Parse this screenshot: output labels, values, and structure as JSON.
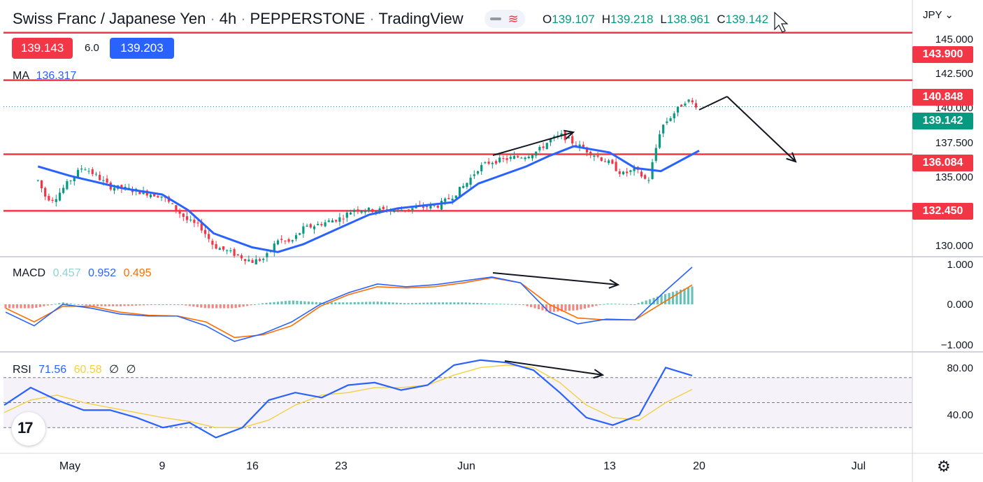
{
  "header": {
    "symbol": "Swiss Franc / Japanese Yen",
    "interval": "4h",
    "broker": "PEPPERSTONE",
    "platform": "TradingView",
    "dot": "·",
    "ohlc": {
      "o_key": "O",
      "o": "139.107",
      "h_key": "H",
      "h": "139.218",
      "l_key": "L",
      "l": "138.961",
      "c_key": "C",
      "c": "139.142"
    },
    "bid": "139.143",
    "spread": "6.0",
    "ask": "139.203",
    "currency": "JPY",
    "currency_caret": "⌄"
  },
  "indicators": {
    "ma": {
      "name": "MA",
      "value": "136.317"
    },
    "macd": {
      "name": "MACD",
      "hist": "0.457",
      "macd": "0.952",
      "signal": "0.495"
    },
    "rsi": {
      "name": "RSI",
      "value": "71.56",
      "ma": "60.58",
      "extra1": "∅",
      "extra2": "∅"
    }
  },
  "price_axis": [
    "145.000",
    "142.500",
    "140.000",
    "137.500",
    "135.000",
    "130.000"
  ],
  "macd_axis": [
    "1.000",
    "0.000",
    "−1.000"
  ],
  "rsi_axis": [
    "80.00",
    "40.00"
  ],
  "level_tags": [
    {
      "label": "143.900",
      "kind": "resistance"
    },
    {
      "label": "140.848",
      "kind": "resistance"
    },
    {
      "label": "139.142",
      "kind": "last"
    },
    {
      "label": "136.084",
      "kind": "support"
    },
    {
      "label": "132.450",
      "kind": "support"
    }
  ],
  "time_axis": [
    "May",
    "9",
    "16",
    "23",
    "Jun",
    "13",
    "20",
    "Jul"
  ],
  "icons": {
    "logo": "tradingview-logo-icon",
    "settings": "gear-icon",
    "cursor": "mouse-pointer-icon"
  },
  "logo_text": "17",
  "settings_glyph": "⚙",
  "colors": {
    "up": "#089981",
    "down": "#f23645",
    "ma": "#2962ff",
    "level": "#f23645",
    "rsi": "#2962ff",
    "rsi_ma": "#f4d03f",
    "macd_line": "#2962ff",
    "signal_line": "#ff6d00",
    "bid": "#f23645",
    "ask": "#2962ff",
    "last": "#089981"
  },
  "chart_data": [
    {
      "type": "candlestick",
      "title": "Swiss Franc / Japanese Yen · 4h · PEPPERSTONE",
      "ylabel": "",
      "xlabel": "",
      "x": [
        "May",
        "9",
        "16",
        "23",
        "Jun",
        "13",
        "20",
        "Jul"
      ],
      "ylim": [
        129.5,
        146.0
      ],
      "horizontal_levels": [
        143.9,
        140.848,
        136.084,
        132.45
      ],
      "last_price": 139.142,
      "close_path": [
        {
          "x": "Apr 28",
          "y": 134.4
        },
        {
          "x": "Apr 29",
          "y": 133.3
        },
        {
          "x": "Apr 30",
          "y": 133.2
        },
        {
          "x": "May 2",
          "y": 134.4
        },
        {
          "x": "May 3",
          "y": 135.3
        },
        {
          "x": "May 4",
          "y": 134.7
        },
        {
          "x": "May 5",
          "y": 134.0
        },
        {
          "x": "May 6",
          "y": 133.9
        },
        {
          "x": "May 9",
          "y": 133.4
        },
        {
          "x": "May 10",
          "y": 132.6
        },
        {
          "x": "May 11",
          "y": 131.8
        },
        {
          "x": "May 12",
          "y": 131.4
        },
        {
          "x": "May 13",
          "y": 130.2
        },
        {
          "x": "May 16",
          "y": 129.2
        },
        {
          "x": "May 17",
          "y": 129.4
        },
        {
          "x": "May 18",
          "y": 130.6
        },
        {
          "x": "May 19",
          "y": 130.4
        },
        {
          "x": "May 20",
          "y": 131.3
        },
        {
          "x": "May 23",
          "y": 132.0
        },
        {
          "x": "May 24",
          "y": 132.6
        },
        {
          "x": "May 25",
          "y": 132.5
        },
        {
          "x": "May 26",
          "y": 132.5
        },
        {
          "x": "May 27",
          "y": 132.5
        },
        {
          "x": "May 30",
          "y": 132.8
        },
        {
          "x": "May 31",
          "y": 133.4
        },
        {
          "x": "Jun 1",
          "y": 134.2
        },
        {
          "x": "Jun 2",
          "y": 135.2
        },
        {
          "x": "Jun 3",
          "y": 135.6
        },
        {
          "x": "Jun 6",
          "y": 136.0
        },
        {
          "x": "Jun 7",
          "y": 136.3
        },
        {
          "x": "Jun 8",
          "y": 137.0
        },
        {
          "x": "Jun 9",
          "y": 137.3
        },
        {
          "x": "Jun 10",
          "y": 136.8
        },
        {
          "x": "Jun 13",
          "y": 135.5
        },
        {
          "x": "Jun 14",
          "y": 134.8
        },
        {
          "x": "Jun 15",
          "y": 135.1
        },
        {
          "x": "Jun 16",
          "y": 134.3
        },
        {
          "x": "Jun 17",
          "y": 137.8
        },
        {
          "x": "Jun 19",
          "y": 139.6
        },
        {
          "x": "Jun 20",
          "y": 139.14
        }
      ],
      "ma_series": [
        {
          "x": "Apr 28",
          "y": 135.3
        },
        {
          "x": "May 2",
          "y": 134.7
        },
        {
          "x": "May 6",
          "y": 133.9
        },
        {
          "x": "May 9",
          "y": 133.5
        },
        {
          "x": "May 11",
          "y": 132.5
        },
        {
          "x": "May 13",
          "y": 131.0
        },
        {
          "x": "May 16",
          "y": 130.1
        },
        {
          "x": "May 18",
          "y": 129.8
        },
        {
          "x": "May 20",
          "y": 130.3
        },
        {
          "x": "May 23",
          "y": 131.4
        },
        {
          "x": "May 25",
          "y": 132.2
        },
        {
          "x": "May 27",
          "y": 132.6
        },
        {
          "x": "May 31",
          "y": 133.0
        },
        {
          "x": "Jun 2",
          "y": 134.2
        },
        {
          "x": "Jun 6",
          "y": 135.3
        },
        {
          "x": "Jun 8",
          "y": 136.0
        },
        {
          "x": "Jun 10",
          "y": 136.6
        },
        {
          "x": "Jun 13",
          "y": 136.2
        },
        {
          "x": "Jun 15",
          "y": 135.2
        },
        {
          "x": "Jun 17",
          "y": 135.0
        },
        {
          "x": "Jun 20",
          "y": 136.317
        }
      ]
    },
    {
      "type": "line",
      "title": "MACD",
      "ylim": [
        -1.2,
        1.2
      ],
      "series": [
        {
          "name": "MACD",
          "values": [
            -0.2,
            -0.55,
            0.0,
            -0.1,
            -0.25,
            -0.3,
            -0.3,
            -0.55,
            -0.95,
            -0.75,
            -0.45,
            0.0,
            0.3,
            0.52,
            0.45,
            0.5,
            0.6,
            0.7,
            0.55,
            -0.2,
            -0.5,
            -0.38,
            -0.4,
            0.3,
            0.952
          ]
        },
        {
          "name": "Signal",
          "values": [
            -0.1,
            -0.45,
            -0.05,
            -0.05,
            -0.2,
            -0.28,
            -0.3,
            -0.45,
            -0.85,
            -0.78,
            -0.55,
            -0.05,
            0.25,
            0.45,
            0.42,
            0.45,
            0.55,
            0.68,
            0.55,
            0.0,
            -0.35,
            -0.4,
            -0.4,
            0.05,
            0.495
          ]
        },
        {
          "name": "Histogram",
          "values": [
            -0.1,
            -0.1,
            0.05,
            -0.05,
            -0.05,
            -0.02,
            0.0,
            -0.1,
            -0.1,
            0.03,
            0.1,
            0.05,
            0.05,
            0.07,
            0.03,
            0.05,
            0.05,
            0.02,
            0.0,
            -0.2,
            -0.15,
            0.02,
            0.0,
            0.25,
            0.457
          ]
        }
      ]
    },
    {
      "type": "line",
      "title": "RSI",
      "ylim": [
        10,
        90
      ],
      "bands": [
        30,
        50,
        70
      ],
      "series": [
        {
          "name": "RSI",
          "values": [
            48,
            62,
            52,
            44,
            44,
            38,
            30,
            34,
            22,
            30,
            52,
            58,
            54,
            64,
            66,
            60,
            64,
            80,
            84,
            82,
            76,
            58,
            38,
            32,
            40,
            78,
            71.56
          ]
        },
        {
          "name": "RSI MA",
          "values": [
            42,
            52,
            56,
            50,
            46,
            42,
            38,
            35,
            30,
            30,
            36,
            48,
            56,
            58,
            62,
            62,
            64,
            72,
            78,
            80,
            78,
            66,
            48,
            38,
            36,
            50,
            60.58
          ]
        }
      ]
    }
  ]
}
